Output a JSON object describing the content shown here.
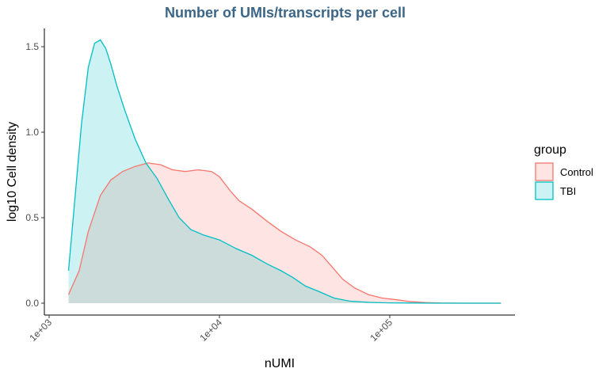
{
  "chart_data": {
    "type": "area",
    "title": "Number of UMIs/transcripts per cell",
    "xlabel": "nUMI",
    "ylabel": "log10 Cell density",
    "x_scale": "log10",
    "xlim": [
      1000,
      500000
    ],
    "ylim": [
      -0.06,
      1.6
    ],
    "x_ticks": [
      {
        "value": 1000,
        "label": "1e+03"
      },
      {
        "value": 10000,
        "label": "1e+04"
      },
      {
        "value": 100000,
        "label": "1e+05"
      }
    ],
    "y_ticks": [
      {
        "value": 0.0,
        "label": "0.0"
      },
      {
        "value": 0.5,
        "label": "0.5"
      },
      {
        "value": 1.0,
        "label": "1.0"
      },
      {
        "value": 1.5,
        "label": "1.5"
      }
    ],
    "grid": false,
    "legend": {
      "title": "group",
      "position": "right"
    },
    "series": [
      {
        "name": "Control",
        "stroke": "#F8766D",
        "fill": "#F8766D",
        "x": [
          1300,
          1500,
          1700,
          2000,
          2300,
          2700,
          3200,
          3800,
          4500,
          5300,
          6300,
          7500,
          9000,
          10000,
          11500,
          13000,
          15500,
          19000,
          23000,
          28000,
          34000,
          40000,
          46000,
          53000,
          62000,
          75000,
          90000,
          110000,
          130000,
          160000,
          200000,
          280000,
          400000,
          450000
        ],
        "y": [
          0.05,
          0.19,
          0.42,
          0.63,
          0.72,
          0.77,
          0.8,
          0.82,
          0.81,
          0.78,
          0.77,
          0.78,
          0.77,
          0.74,
          0.66,
          0.6,
          0.55,
          0.48,
          0.42,
          0.37,
          0.33,
          0.28,
          0.21,
          0.14,
          0.09,
          0.05,
          0.03,
          0.02,
          0.01,
          0.004,
          0.001,
          0.0,
          0.0,
          0.0
        ]
      },
      {
        "name": "TBI",
        "stroke": "#00BFC4",
        "fill": "#00BFC4",
        "x": [
          1300,
          1400,
          1550,
          1700,
          1850,
          2000,
          2150,
          2300,
          2500,
          2800,
          3200,
          3700,
          4300,
          5000,
          5800,
          6800,
          8000,
          10000,
          12500,
          15500,
          19000,
          23000,
          27000,
          32000,
          38000,
          47000,
          58000,
          75000,
          100000,
          140000,
          200000,
          300000,
          450000
        ],
        "y": [
          0.19,
          0.55,
          1.05,
          1.38,
          1.52,
          1.54,
          1.49,
          1.4,
          1.27,
          1.12,
          0.96,
          0.82,
          0.73,
          0.61,
          0.5,
          0.43,
          0.4,
          0.37,
          0.32,
          0.28,
          0.23,
          0.19,
          0.15,
          0.1,
          0.07,
          0.03,
          0.012,
          0.005,
          0.002,
          0.001,
          0.0,
          0.0,
          0.0
        ]
      }
    ]
  }
}
